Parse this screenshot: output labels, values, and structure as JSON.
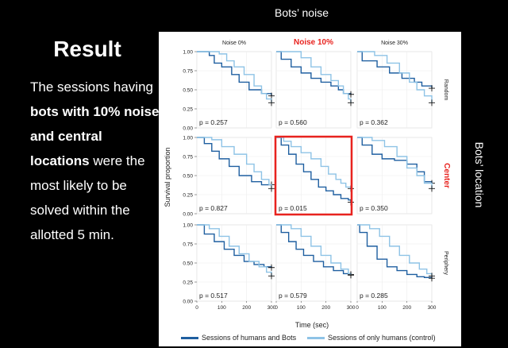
{
  "slide": {
    "top_title": "Bots’ noise",
    "side_title": "Bots’ location",
    "heading": "Result",
    "body_parts": [
      {
        "text": "The sessions having ",
        "bold": false
      },
      {
        "text": "bots with 10% noise and central locations",
        "bold": true
      },
      {
        "text": " were the most likely to be solved within the allotted 5 min.",
        "bold": false
      }
    ]
  },
  "figure": {
    "col_labels": [
      "Noise 0%",
      "Noise 10%",
      "Noise 30%"
    ],
    "row_labels": [
      "Random",
      "Center",
      "Periphery"
    ],
    "highlight_color": "#e8231f",
    "highlight_col": 1,
    "highlight_row": 1,
    "y_label": "Survival proportion",
    "x_label": "Time (sec)",
    "y_ticks": [
      "0.00",
      "0.25",
      "0.50",
      "0.75",
      "1.00"
    ],
    "x_ticks": [
      "0",
      "100",
      "200",
      "300"
    ],
    "legend": [
      {
        "label": "Sessions of humans and Bots",
        "color": "#1f5fa0"
      },
      {
        "label": "Sessions of only humans (control)",
        "color": "#8ec3e6"
      }
    ]
  },
  "chart_data": {
    "type": "line",
    "x_unit": "sec",
    "xlim": [
      0,
      300
    ],
    "ylim": [
      0,
      1
    ],
    "panels": [
      {
        "row": "Random",
        "col": "Noise 0%",
        "p_label": "p = 0.257",
        "series": [
          {
            "name": "Sessions of humans and Bots",
            "x": [
              0,
              50,
              70,
              100,
              140,
              170,
              210,
              260,
              300
            ],
            "y": [
              1,
              0.95,
              0.85,
              0.8,
              0.7,
              0.6,
              0.5,
              0.45,
              0.42
            ]
          },
          {
            "name": "Sessions of only humans (control)",
            "x": [
              0,
              90,
              120,
              150,
              190,
              230,
              260,
              280,
              300
            ],
            "y": [
              1,
              0.97,
              0.88,
              0.8,
              0.7,
              0.55,
              0.45,
              0.38,
              0.33
            ]
          }
        ]
      },
      {
        "row": "Random",
        "col": "Noise 10%",
        "p_label": "p = 0.560",
        "series": [
          {
            "name": "Sessions of humans and Bots",
            "x": [
              0,
              20,
              60,
              100,
              140,
              180,
              220,
              250,
              270,
              300
            ],
            "y": [
              1,
              0.9,
              0.8,
              0.72,
              0.65,
              0.6,
              0.55,
              0.5,
              0.45,
              0.44
            ]
          },
          {
            "name": "Sessions of only humans (control)",
            "x": [
              0,
              100,
              140,
              180,
              220,
              250,
              270,
              290,
              300
            ],
            "y": [
              1,
              0.92,
              0.8,
              0.7,
              0.62,
              0.55,
              0.45,
              0.38,
              0.33
            ]
          }
        ]
      },
      {
        "row": "Random",
        "col": "Noise 30%",
        "p_label": "p = 0.362",
        "series": [
          {
            "name": "Sessions of humans and Bots",
            "x": [
              0,
              20,
              80,
              130,
              180,
              230,
              260,
              300
            ],
            "y": [
              1,
              0.88,
              0.8,
              0.72,
              0.65,
              0.6,
              0.55,
              0.52
            ]
          },
          {
            "name": "Sessions of only humans (control)",
            "x": [
              0,
              70,
              120,
              170,
              210,
              240,
              270,
              300
            ],
            "y": [
              1,
              0.95,
              0.85,
              0.72,
              0.6,
              0.5,
              0.42,
              0.33
            ]
          }
        ]
      },
      {
        "row": "Center",
        "col": "Noise 0%",
        "p_label": "p = 0.827",
        "series": [
          {
            "name": "Sessions of humans and Bots",
            "x": [
              0,
              30,
              60,
              90,
              130,
              170,
              220,
              260,
              300
            ],
            "y": [
              1,
              0.92,
              0.82,
              0.72,
              0.62,
              0.5,
              0.42,
              0.38,
              0.38
            ]
          },
          {
            "name": "Sessions of only humans (control)",
            "x": [
              0,
              60,
              100,
              150,
              200,
              230,
              260,
              290,
              300
            ],
            "y": [
              1,
              0.97,
              0.88,
              0.78,
              0.65,
              0.55,
              0.45,
              0.38,
              0.33
            ]
          }
        ]
      },
      {
        "row": "Center",
        "col": "Noise 10%",
        "p_label": "p = 0.015",
        "series": [
          {
            "name": "Sessions of humans and Bots",
            "x": [
              0,
              20,
              50,
              80,
              110,
              140,
              170,
              200,
              230,
              260,
              290,
              300
            ],
            "y": [
              1,
              0.9,
              0.78,
              0.65,
              0.55,
              0.45,
              0.35,
              0.3,
              0.25,
              0.2,
              0.18,
              0.15
            ]
          },
          {
            "name": "Sessions of only humans (control)",
            "x": [
              0,
              30,
              60,
              100,
              140,
              180,
              210,
              240,
              260,
              280,
              300
            ],
            "y": [
              1,
              0.95,
              0.88,
              0.8,
              0.72,
              0.62,
              0.52,
              0.45,
              0.4,
              0.35,
              0.33
            ]
          }
        ]
      },
      {
        "row": "Center",
        "col": "Noise 30%",
        "p_label": "p = 0.350",
        "series": [
          {
            "name": "Sessions of humans and Bots",
            "x": [
              0,
              20,
              60,
              100,
              150,
              200,
              240,
              270,
              300
            ],
            "y": [
              1,
              0.9,
              0.78,
              0.72,
              0.7,
              0.65,
              0.55,
              0.42,
              0.4
            ]
          },
          {
            "name": "Sessions of only humans (control)",
            "x": [
              0,
              60,
              110,
              160,
              200,
              240,
              270,
              300
            ],
            "y": [
              1,
              0.96,
              0.88,
              0.75,
              0.6,
              0.5,
              0.4,
              0.33
            ]
          }
        ]
      },
      {
        "row": "Periphery",
        "col": "Noise 0%",
        "p_label": "p = 0.517",
        "series": [
          {
            "name": "Sessions of humans and Bots",
            "x": [
              0,
              30,
              70,
              110,
              150,
              190,
              230,
              270,
              300
            ],
            "y": [
              1,
              0.88,
              0.78,
              0.68,
              0.6,
              0.52,
              0.48,
              0.45,
              0.44
            ]
          },
          {
            "name": "Sessions of only humans (control)",
            "x": [
              0,
              50,
              90,
              130,
              170,
              210,
              250,
              280,
              300
            ],
            "y": [
              1,
              0.95,
              0.85,
              0.72,
              0.62,
              0.52,
              0.45,
              0.38,
              0.33
            ]
          }
        ]
      },
      {
        "row": "Periphery",
        "col": "Noise 10%",
        "p_label": "p = 0.579",
        "series": [
          {
            "name": "Sessions of humans and Bots",
            "x": [
              0,
              20,
              50,
              80,
              110,
              150,
              190,
              230,
              270,
              300
            ],
            "y": [
              1,
              0.9,
              0.78,
              0.68,
              0.6,
              0.52,
              0.45,
              0.4,
              0.36,
              0.35
            ]
          },
          {
            "name": "Sessions of only humans (control)",
            "x": [
              0,
              60,
              100,
              140,
              180,
              220,
              260,
              290,
              300
            ],
            "y": [
              1,
              0.95,
              0.85,
              0.72,
              0.6,
              0.5,
              0.42,
              0.36,
              0.34
            ]
          }
        ]
      },
      {
        "row": "Periphery",
        "col": "Noise 30%",
        "p_label": "p = 0.285",
        "series": [
          {
            "name": "Sessions of humans and Bots",
            "x": [
              0,
              10,
              40,
              80,
              120,
              160,
              200,
              240,
              270,
              300
            ],
            "y": [
              1,
              0.9,
              0.72,
              0.55,
              0.45,
              0.4,
              0.35,
              0.32,
              0.31,
              0.3
            ]
          },
          {
            "name": "Sessions of only humans (control)",
            "x": [
              0,
              50,
              90,
              130,
              170,
              210,
              250,
              280,
              300
            ],
            "y": [
              1,
              0.95,
              0.85,
              0.72,
              0.6,
              0.5,
              0.42,
              0.36,
              0.33
            ]
          }
        ]
      }
    ]
  }
}
